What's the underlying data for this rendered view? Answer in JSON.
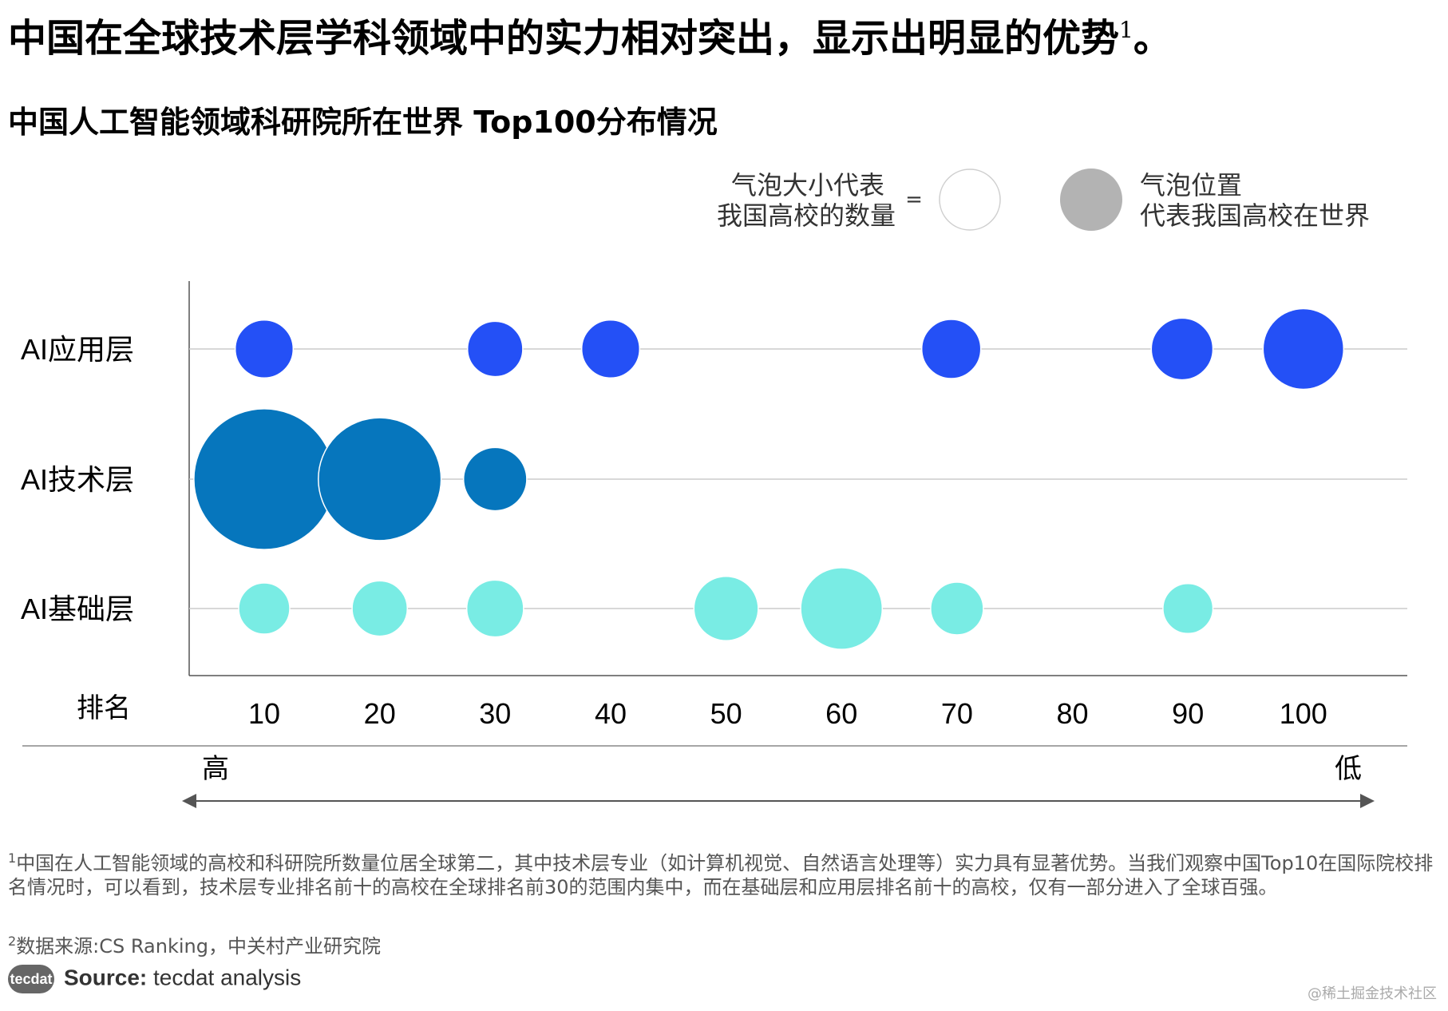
{
  "headline": {
    "text": "中国在全球技术层学科领域中的实力相对突出，显示出明显的优势",
    "sup": "1",
    "end": "。"
  },
  "chart_data": {
    "type": "scatter",
    "title": "中国人工智能领域科研院所在世界 Top100分布情况",
    "xlabel": "排名",
    "x_ticks": [
      10,
      20,
      30,
      40,
      50,
      60,
      70,
      80,
      90,
      100
    ],
    "xlim": [
      3.5,
      109
    ],
    "x_direction": {
      "high": "高",
      "low": "低"
    },
    "categories": [
      "AI应用层",
      "AI技术层",
      "AI基础层"
    ],
    "legend": {
      "size_label": [
        "气泡大小代表",
        "我国高校的数量"
      ],
      "equals": "=",
      "position_label": [
        "气泡位置",
        "代表我国高校在世界"
      ]
    },
    "series": [
      {
        "name": "AI应用层",
        "color": "#2450f6",
        "points": [
          {
            "x": 10,
            "size": 1.1
          },
          {
            "x": 30,
            "size": 1.05
          },
          {
            "x": 40,
            "size": 1.1
          },
          {
            "x": 69.5,
            "size": 1.12
          },
          {
            "x": 89.5,
            "size": 1.17
          },
          {
            "x": 100,
            "size": 1.53
          }
        ]
      },
      {
        "name": "AI技术层",
        "color": "#0676bd",
        "points": [
          {
            "x": 10,
            "size": 2.67
          },
          {
            "x": 20,
            "size": 2.33
          },
          {
            "x": 30,
            "size": 1.2
          }
        ]
      },
      {
        "name": "AI基础层",
        "color": "#79ece4",
        "points": [
          {
            "x": 10,
            "size": 0.97
          },
          {
            "x": 20,
            "size": 1.05
          },
          {
            "x": 30,
            "size": 1.08
          },
          {
            "x": 50,
            "size": 1.22
          },
          {
            "x": 60,
            "size": 1.55
          },
          {
            "x": 70,
            "size": 1.0
          },
          {
            "x": 90,
            "size": 0.95
          }
        ]
      }
    ],
    "gridlines": true
  },
  "footnotes": {
    "note1_sup": "1",
    "note1": "中国在人工智能领域的高校和科研院所数量位居全球第二，其中技术层专业（如计算机视觉、自然语言处理等）实力具有显著优势。当我们观察中国Top10在国际院校排名情况时，可以看到，技术层专业排名前十的高校在全球排名前30的范围内集中，而在基础层和应用层排名前十的高校，仅有一部分进入了全球百强。",
    "note2_sup": "2",
    "note2": "数据来源:CS Ranking，中关村产业研究院"
  },
  "source": {
    "logo": "tecdat",
    "label": "Source:",
    "text": " tecdat analysis"
  },
  "watermark": "@稀土掘金技术社区"
}
